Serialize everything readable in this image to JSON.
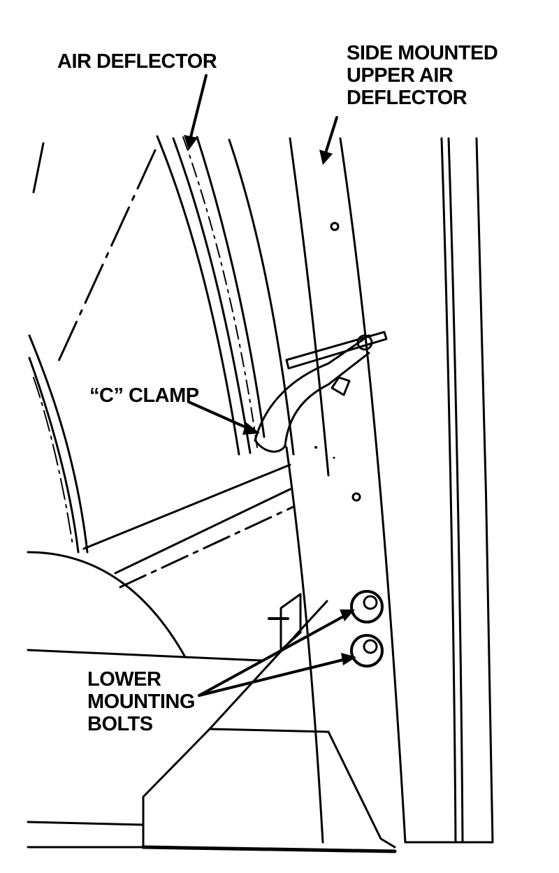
{
  "labels": {
    "air_deflector": "AIR DEFLECTOR",
    "side_mounted": [
      "SIDE MOUNTED",
      "UPPER AIR",
      "DEFLECTOR"
    ],
    "c_clamp": "“C” CLAMP",
    "lower_bolts": [
      "LOWER",
      "MOUNTING",
      "BOLTS"
    ]
  }
}
